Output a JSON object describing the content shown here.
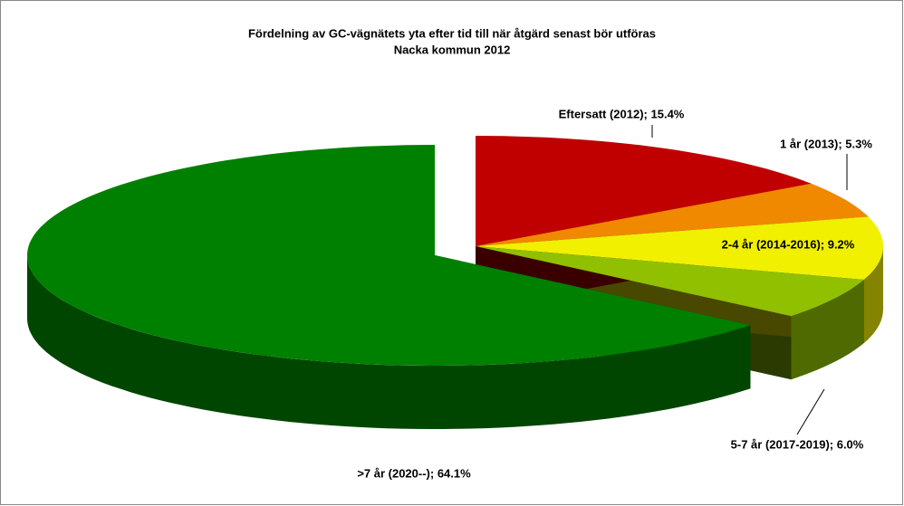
{
  "chart_data": {
    "type": "pie",
    "title": "Fördelning av GC-vägnätets yta efter tid till när åtgärd senast bör utföras",
    "subtitle": "Nacka kommun 2012",
    "values": [
      15.4,
      5.3,
      9.2,
      6.0,
      64.1
    ],
    "value_labels": [
      "Eftersatt (2012); 15.4%",
      "1 år (2013); 5.3%",
      "2-4 år (2014-2016); 9.2%",
      "5-7 år (2017-2019); 6.0%",
      ">7 år (2020--); 64.1%"
    ],
    "colors": [
      "#c00000",
      "#f08800",
      "#f0f000",
      "#90c000",
      "#008000"
    ]
  }
}
